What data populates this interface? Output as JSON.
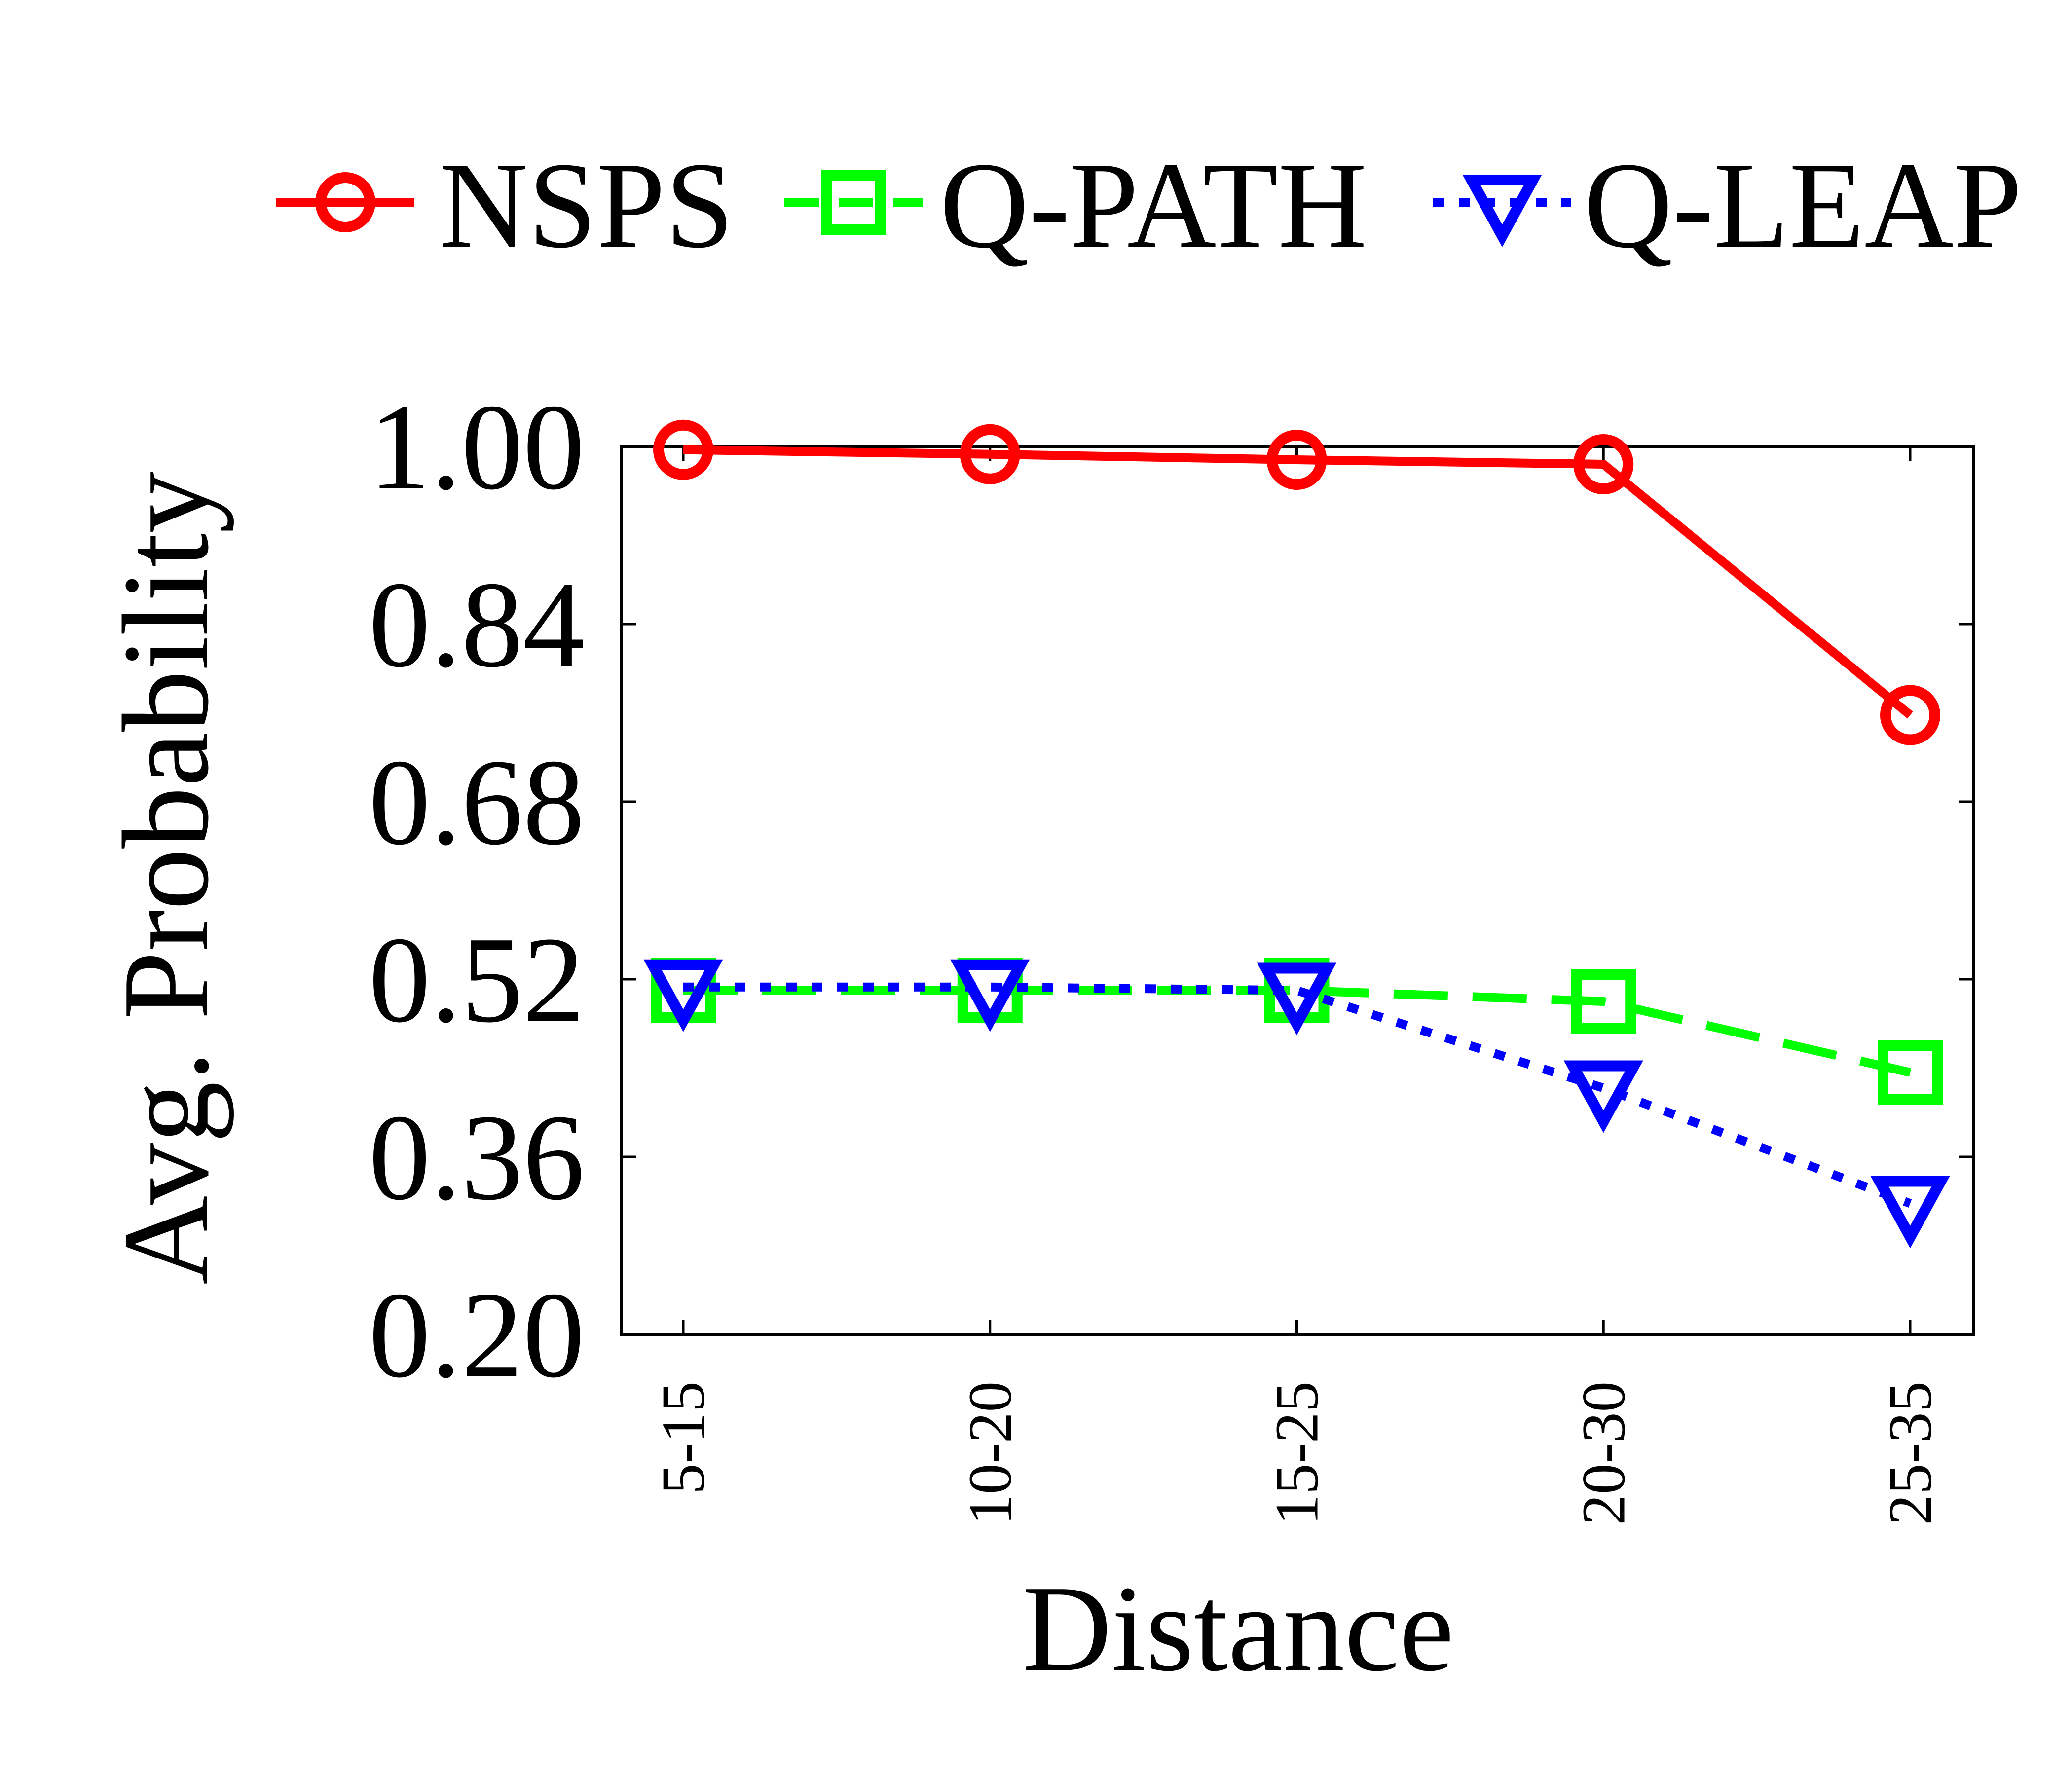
{
  "chart_data": {
    "type": "line",
    "title": "",
    "xlabel": "Distance",
    "ylabel": "Avg. Probability",
    "categories": [
      "5-15",
      "10-20",
      "15-25",
      "20-30",
      "25-35"
    ],
    "ylim": [
      0.2,
      1.0
    ],
    "yticks": [
      "0.20",
      "0.36",
      "0.52",
      "0.68",
      "0.84",
      "1.00"
    ],
    "grid": false,
    "legend_position": "top",
    "series": [
      {
        "name": "NSPS",
        "values": [
          0.997,
          0.993,
          0.988,
          0.984,
          0.758
        ],
        "color": "#ff0000",
        "marker": "circle",
        "line_style": "solid"
      },
      {
        "name": "Q-PATH",
        "values": [
          0.51,
          0.51,
          0.51,
          0.5,
          0.436
        ],
        "color": "#00ff00",
        "marker": "square",
        "line_style": "dashed"
      },
      {
        "name": "Q-LEAP",
        "values": [
          0.513,
          0.513,
          0.51,
          0.422,
          0.318
        ],
        "color": "#0000ff",
        "marker": "triangle-down",
        "line_style": "dotted"
      }
    ]
  }
}
